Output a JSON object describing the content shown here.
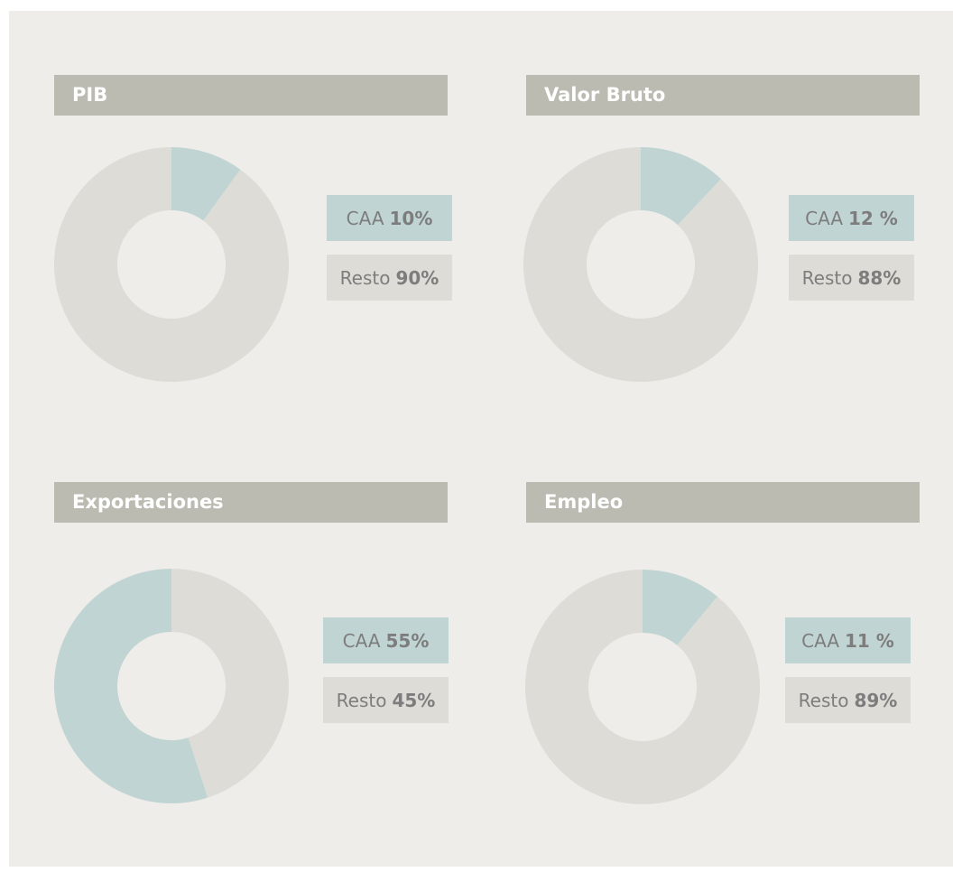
{
  "chart_data": [
    {
      "type": "pie",
      "title": "PIB",
      "categories": [
        "CAA",
        "Resto"
      ],
      "values": [
        10,
        90
      ],
      "value_labels": [
        "10%",
        "90%"
      ],
      "colors": [
        "#c0d5d3",
        "#dddcd6"
      ]
    },
    {
      "type": "pie",
      "title": "Valor Bruto",
      "categories": [
        "CAA",
        "Resto"
      ],
      "values": [
        12,
        88
      ],
      "value_labels": [
        "12 %",
        "88%"
      ],
      "colors": [
        "#c0d5d3",
        "#dddcd6"
      ]
    },
    {
      "type": "pie",
      "title": "Exportaciones",
      "categories": [
        "CAA",
        "Resto"
      ],
      "values": [
        55,
        45
      ],
      "value_labels": [
        "55%",
        "45%"
      ],
      "colors": [
        "#c0d5d3",
        "#dddcd6"
      ]
    },
    {
      "type": "pie",
      "title": "Empleo",
      "categories": [
        "CAA",
        "Resto"
      ],
      "values": [
        11,
        89
      ],
      "value_labels": [
        "11 %",
        "89%"
      ],
      "colors": [
        "#c0d5d3",
        "#dddcd6"
      ]
    }
  ]
}
